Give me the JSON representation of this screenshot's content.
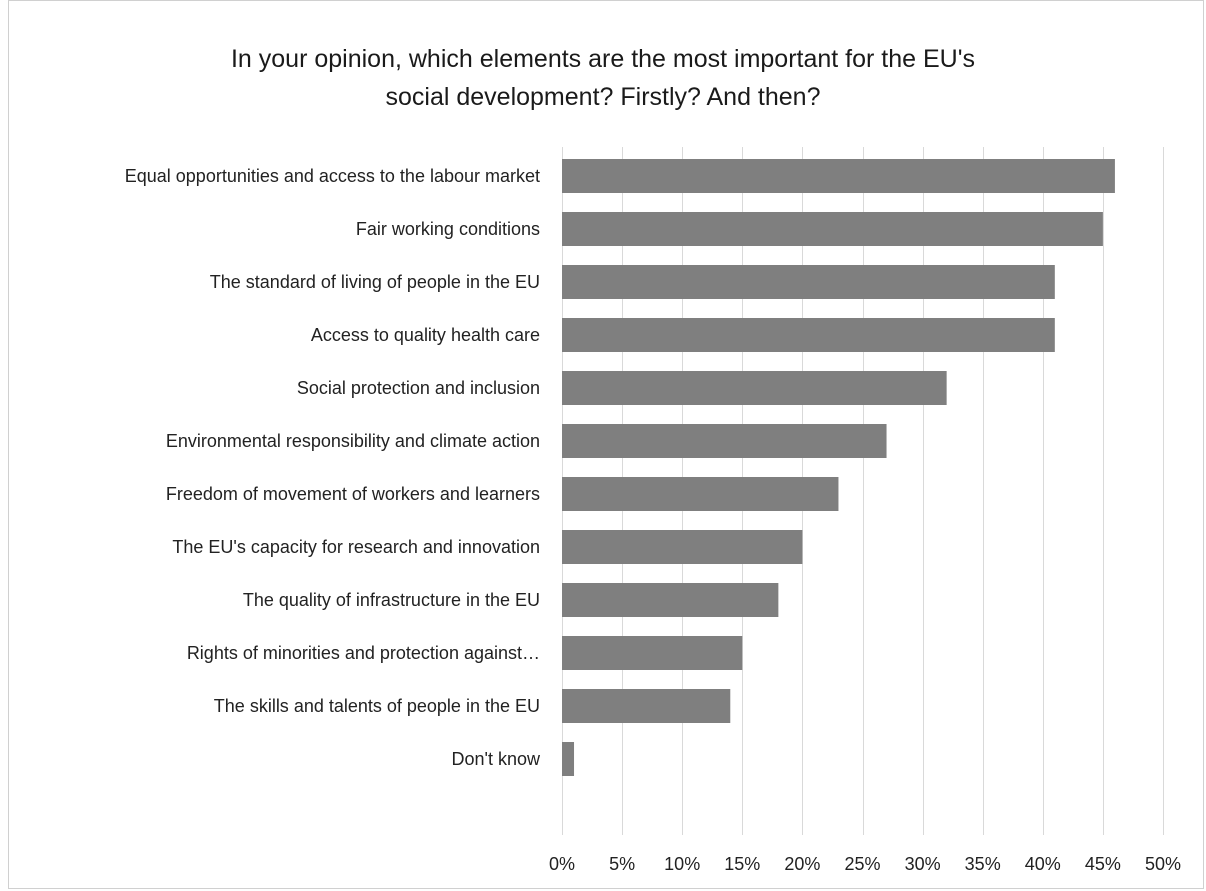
{
  "chart_data": {
    "type": "bar",
    "orientation": "horizontal",
    "title_lines": [
      "In your opinion, which elements are the most important for the EU's",
      "social development? Firstly? And then?"
    ],
    "categories": [
      "Equal opportunities and access to the labour market",
      "Fair working conditions",
      "The standard of living of people in the EU",
      "Access to quality health care",
      "Social protection and inclusion",
      "Environmental responsibility and climate action",
      "Freedom of movement of workers and learners",
      "The EU's capacity for research and innovation",
      "The quality of infrastructure in the EU",
      "Rights of minorities and protection against…",
      "The skills and talents of people in the EU",
      "Don't know"
    ],
    "values": [
      46,
      45,
      41,
      41,
      32,
      27,
      23,
      20,
      18,
      15,
      14,
      1
    ],
    "xlim": [
      0,
      50
    ],
    "xticks": [
      0,
      5,
      10,
      15,
      20,
      25,
      30,
      35,
      40,
      45,
      50
    ],
    "xtick_labels": [
      "0%",
      "5%",
      "10%",
      "15%",
      "20%",
      "25%",
      "30%",
      "35%",
      "40%",
      "45%",
      "50%"
    ],
    "bar_color": "#7f7f7f",
    "grid": true,
    "legend": "none"
  }
}
